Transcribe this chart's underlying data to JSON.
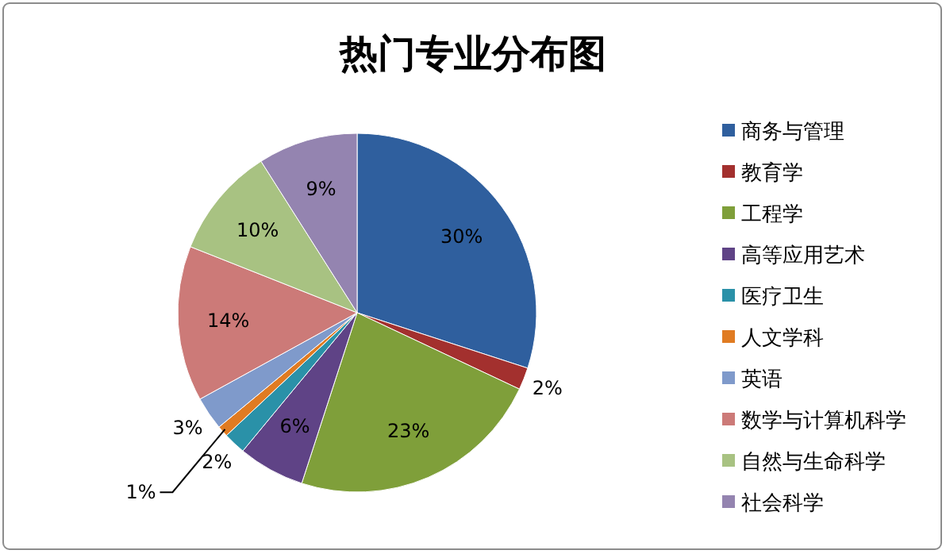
{
  "chart_data": {
    "type": "pie",
    "title": "热门专业分布图",
    "categories": [
      "商务与管理",
      "教育学",
      "工程学",
      "高等应用艺术",
      "医疗卫生",
      "人文学科",
      "英语",
      "数学与计算机科学",
      "自然与生命科学",
      "社会科学"
    ],
    "values": [
      30,
      2,
      23,
      6,
      2,
      1,
      3,
      14,
      10,
      9
    ],
    "colors": [
      "#2f5f9e",
      "#a3302e",
      "#7f9f3a",
      "#5f4386",
      "#2a91a8",
      "#e07b22",
      "#7f9acb",
      "#cc7a78",
      "#a8c282",
      "#9484b0"
    ],
    "value_labels": [
      "30%",
      "2%",
      "23%",
      "6%",
      "2%",
      "1%",
      "3%",
      "14%",
      "10%",
      "9%"
    ],
    "legend": "right"
  }
}
